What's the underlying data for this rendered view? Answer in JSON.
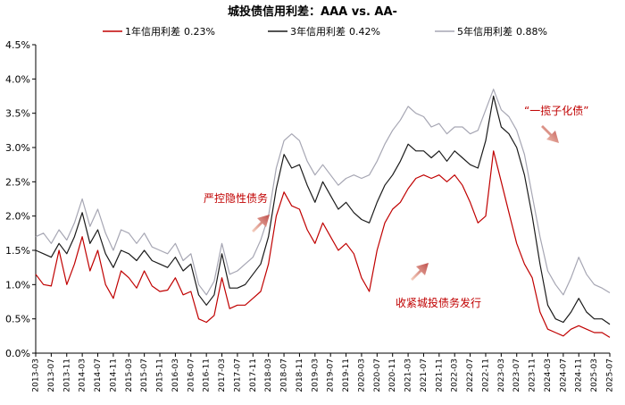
{
  "chart_data": {
    "type": "line",
    "title": "城投债信用利差：AAA vs. AA-",
    "ylim": [
      0,
      4.5
    ],
    "y_ticks": [
      "0.0%",
      "0.5%",
      "1.0%",
      "1.5%",
      "2.0%",
      "2.5%",
      "3.0%",
      "3.5%",
      "4.0%",
      "4.5%"
    ],
    "y_tick_values": [
      0,
      0.5,
      1.0,
      1.5,
      2.0,
      2.5,
      3.0,
      3.5,
      4.0,
      4.5
    ],
    "x_ticks": [
      "2013-03",
      "2013-07",
      "2013-11",
      "2014-03",
      "2014-07",
      "2014-11",
      "2015-03",
      "2015-07",
      "2015-11",
      "2016-03",
      "2016-07",
      "2016-11",
      "2017-03",
      "2017-07",
      "2017-11",
      "2018-03",
      "2018-07",
      "2018-11",
      "2019-03",
      "2019-07",
      "2019-11",
      "2020-03",
      "2020-07",
      "2020-11",
      "2021-03",
      "2021-07",
      "2021-11",
      "2022-03",
      "2022-07",
      "2022-11",
      "2023-03",
      "2023-07",
      "2023-11",
      "2024-03",
      "2024-07",
      "2024-11",
      "2025-03",
      "2025-07"
    ],
    "grid": false,
    "legend_position": "top",
    "series": [
      {
        "name": "1年信用利差",
        "legend_value": "0.23%",
        "color": "#c00000",
        "points": [
          [
            "2013-03",
            1.15
          ],
          [
            "2013-05",
            1.0
          ],
          [
            "2013-07",
            0.98
          ],
          [
            "2013-09",
            1.5
          ],
          [
            "2013-11",
            1.0
          ],
          [
            "2014-01",
            1.3
          ],
          [
            "2014-03",
            1.7
          ],
          [
            "2014-05",
            1.2
          ],
          [
            "2014-07",
            1.5
          ],
          [
            "2014-09",
            1.0
          ],
          [
            "2014-11",
            0.8
          ],
          [
            "2015-01",
            1.2
          ],
          [
            "2015-03",
            1.1
          ],
          [
            "2015-05",
            0.95
          ],
          [
            "2015-07",
            1.2
          ],
          [
            "2015-09",
            0.98
          ],
          [
            "2015-11",
            0.9
          ],
          [
            "2016-01",
            0.92
          ],
          [
            "2016-03",
            1.1
          ],
          [
            "2016-05",
            0.85
          ],
          [
            "2016-07",
            0.9
          ],
          [
            "2016-09",
            0.5
          ],
          [
            "2016-11",
            0.45
          ],
          [
            "2017-01",
            0.55
          ],
          [
            "2017-03",
            1.1
          ],
          [
            "2017-05",
            0.65
          ],
          [
            "2017-07",
            0.7
          ],
          [
            "2017-09",
            0.7
          ],
          [
            "2017-11",
            0.8
          ],
          [
            "2018-01",
            0.9
          ],
          [
            "2018-03",
            1.3
          ],
          [
            "2018-05",
            2.0
          ],
          [
            "2018-07",
            2.35
          ],
          [
            "2018-09",
            2.15
          ],
          [
            "2018-11",
            2.1
          ],
          [
            "2019-01",
            1.8
          ],
          [
            "2019-03",
            1.6
          ],
          [
            "2019-05",
            1.9
          ],
          [
            "2019-07",
            1.7
          ],
          [
            "2019-09",
            1.5
          ],
          [
            "2019-11",
            1.6
          ],
          [
            "2020-01",
            1.45
          ],
          [
            "2020-03",
            1.1
          ],
          [
            "2020-05",
            0.9
          ],
          [
            "2020-07",
            1.5
          ],
          [
            "2020-09",
            1.9
          ],
          [
            "2020-11",
            2.1
          ],
          [
            "2021-01",
            2.2
          ],
          [
            "2021-03",
            2.4
          ],
          [
            "2021-05",
            2.55
          ],
          [
            "2021-07",
            2.6
          ],
          [
            "2021-09",
            2.55
          ],
          [
            "2021-11",
            2.6
          ],
          [
            "2022-01",
            2.5
          ],
          [
            "2022-03",
            2.6
          ],
          [
            "2022-05",
            2.45
          ],
          [
            "2022-07",
            2.2
          ],
          [
            "2022-09",
            1.9
          ],
          [
            "2022-11",
            2.0
          ],
          [
            "2023-01",
            2.95
          ],
          [
            "2023-03",
            2.5
          ],
          [
            "2023-05",
            2.05
          ],
          [
            "2023-07",
            1.6
          ],
          [
            "2023-09",
            1.3
          ],
          [
            "2023-11",
            1.1
          ],
          [
            "2024-01",
            0.6
          ],
          [
            "2024-03",
            0.35
          ],
          [
            "2024-05",
            0.3
          ],
          [
            "2024-07",
            0.25
          ],
          [
            "2024-09",
            0.35
          ],
          [
            "2024-11",
            0.4
          ],
          [
            "2025-01",
            0.35
          ],
          [
            "2025-03",
            0.3
          ],
          [
            "2025-05",
            0.3
          ],
          [
            "2025-07",
            0.23
          ]
        ]
      },
      {
        "name": "3年信用利差",
        "legend_value": "0.42%",
        "color": "#1a1a1a",
        "points": [
          [
            "2013-03",
            1.5
          ],
          [
            "2013-05",
            1.45
          ],
          [
            "2013-07",
            1.4
          ],
          [
            "2013-09",
            1.6
          ],
          [
            "2013-11",
            1.45
          ],
          [
            "2014-01",
            1.7
          ],
          [
            "2014-03",
            2.05
          ],
          [
            "2014-05",
            1.6
          ],
          [
            "2014-07",
            1.8
          ],
          [
            "2014-09",
            1.45
          ],
          [
            "2014-11",
            1.25
          ],
          [
            "2015-01",
            1.5
          ],
          [
            "2015-03",
            1.45
          ],
          [
            "2015-05",
            1.35
          ],
          [
            "2015-07",
            1.5
          ],
          [
            "2015-09",
            1.35
          ],
          [
            "2015-11",
            1.3
          ],
          [
            "2016-01",
            1.25
          ],
          [
            "2016-03",
            1.4
          ],
          [
            "2016-05",
            1.2
          ],
          [
            "2016-07",
            1.3
          ],
          [
            "2016-09",
            0.85
          ],
          [
            "2016-11",
            0.7
          ],
          [
            "2017-01",
            0.85
          ],
          [
            "2017-03",
            1.45
          ],
          [
            "2017-05",
            0.95
          ],
          [
            "2017-07",
            0.95
          ],
          [
            "2017-09",
            1.0
          ],
          [
            "2017-11",
            1.15
          ],
          [
            "2018-01",
            1.3
          ],
          [
            "2018-03",
            1.7
          ],
          [
            "2018-05",
            2.4
          ],
          [
            "2018-07",
            2.9
          ],
          [
            "2018-09",
            2.7
          ],
          [
            "2018-11",
            2.75
          ],
          [
            "2019-01",
            2.45
          ],
          [
            "2019-03",
            2.2
          ],
          [
            "2019-05",
            2.5
          ],
          [
            "2019-07",
            2.3
          ],
          [
            "2019-09",
            2.1
          ],
          [
            "2019-11",
            2.2
          ],
          [
            "2020-01",
            2.05
          ],
          [
            "2020-03",
            1.95
          ],
          [
            "2020-05",
            1.9
          ],
          [
            "2020-07",
            2.2
          ],
          [
            "2020-09",
            2.45
          ],
          [
            "2020-11",
            2.6
          ],
          [
            "2021-01",
            2.8
          ],
          [
            "2021-03",
            3.05
          ],
          [
            "2021-05",
            2.95
          ],
          [
            "2021-07",
            2.95
          ],
          [
            "2021-09",
            2.85
          ],
          [
            "2021-11",
            2.95
          ],
          [
            "2022-01",
            2.8
          ],
          [
            "2022-03",
            2.95
          ],
          [
            "2022-05",
            2.85
          ],
          [
            "2022-07",
            2.75
          ],
          [
            "2022-09",
            2.7
          ],
          [
            "2022-11",
            3.1
          ],
          [
            "2023-01",
            3.75
          ],
          [
            "2023-03",
            3.3
          ],
          [
            "2023-05",
            3.2
          ],
          [
            "2023-07",
            3.0
          ],
          [
            "2023-09",
            2.6
          ],
          [
            "2023-11",
            2.0
          ],
          [
            "2024-01",
            1.3
          ],
          [
            "2024-03",
            0.7
          ],
          [
            "2024-05",
            0.5
          ],
          [
            "2024-07",
            0.45
          ],
          [
            "2024-09",
            0.6
          ],
          [
            "2024-11",
            0.8
          ],
          [
            "2025-01",
            0.6
          ],
          [
            "2025-03",
            0.5
          ],
          [
            "2025-05",
            0.5
          ],
          [
            "2025-07",
            0.42
          ]
        ]
      },
      {
        "name": "5年信用利差",
        "legend_value": "0.88%",
        "color": "#a6a6b3",
        "points": [
          [
            "2013-03",
            1.7
          ],
          [
            "2013-05",
            1.75
          ],
          [
            "2013-07",
            1.6
          ],
          [
            "2013-09",
            1.8
          ],
          [
            "2013-11",
            1.65
          ],
          [
            "2014-01",
            1.9
          ],
          [
            "2014-03",
            2.25
          ],
          [
            "2014-05",
            1.85
          ],
          [
            "2014-07",
            2.1
          ],
          [
            "2014-09",
            1.75
          ],
          [
            "2014-11",
            1.5
          ],
          [
            "2015-01",
            1.8
          ],
          [
            "2015-03",
            1.75
          ],
          [
            "2015-05",
            1.6
          ],
          [
            "2015-07",
            1.75
          ],
          [
            "2015-09",
            1.55
          ],
          [
            "2015-11",
            1.5
          ],
          [
            "2016-01",
            1.45
          ],
          [
            "2016-03",
            1.6
          ],
          [
            "2016-05",
            1.35
          ],
          [
            "2016-07",
            1.45
          ],
          [
            "2016-09",
            1.0
          ],
          [
            "2016-11",
            0.85
          ],
          [
            "2017-01",
            1.05
          ],
          [
            "2017-03",
            1.6
          ],
          [
            "2017-05",
            1.15
          ],
          [
            "2017-07",
            1.2
          ],
          [
            "2017-09",
            1.3
          ],
          [
            "2017-11",
            1.4
          ],
          [
            "2018-01",
            1.65
          ],
          [
            "2018-03",
            2.0
          ],
          [
            "2018-05",
            2.7
          ],
          [
            "2018-07",
            3.1
          ],
          [
            "2018-09",
            3.2
          ],
          [
            "2018-11",
            3.1
          ],
          [
            "2019-01",
            2.8
          ],
          [
            "2019-03",
            2.6
          ],
          [
            "2019-05",
            2.75
          ],
          [
            "2019-07",
            2.6
          ],
          [
            "2019-09",
            2.45
          ],
          [
            "2019-11",
            2.55
          ],
          [
            "2020-01",
            2.6
          ],
          [
            "2020-03",
            2.55
          ],
          [
            "2020-05",
            2.6
          ],
          [
            "2020-07",
            2.8
          ],
          [
            "2020-09",
            3.05
          ],
          [
            "2020-11",
            3.25
          ],
          [
            "2021-01",
            3.4
          ],
          [
            "2021-03",
            3.6
          ],
          [
            "2021-05",
            3.5
          ],
          [
            "2021-07",
            3.45
          ],
          [
            "2021-09",
            3.3
          ],
          [
            "2021-11",
            3.35
          ],
          [
            "2022-01",
            3.2
          ],
          [
            "2022-03",
            3.3
          ],
          [
            "2022-05",
            3.3
          ],
          [
            "2022-07",
            3.2
          ],
          [
            "2022-09",
            3.25
          ],
          [
            "2022-11",
            3.55
          ],
          [
            "2023-01",
            3.85
          ],
          [
            "2023-03",
            3.55
          ],
          [
            "2023-05",
            3.45
          ],
          [
            "2023-07",
            3.25
          ],
          [
            "2023-09",
            2.9
          ],
          [
            "2023-11",
            2.3
          ],
          [
            "2024-01",
            1.7
          ],
          [
            "2024-03",
            1.2
          ],
          [
            "2024-05",
            1.0
          ],
          [
            "2024-07",
            0.85
          ],
          [
            "2024-09",
            1.1
          ],
          [
            "2024-11",
            1.4
          ],
          [
            "2025-01",
            1.15
          ],
          [
            "2025-03",
            1.0
          ],
          [
            "2025-05",
            0.95
          ],
          [
            "2025-07",
            0.88
          ]
        ]
      }
    ],
    "annotations": [
      {
        "text": "严控隐性债务",
        "color": "#c00000"
      },
      {
        "text": "收紧城投债务发行",
        "color": "#c00000"
      },
      {
        "text": "“一揽子化债”",
        "color": "#c00000"
      }
    ]
  }
}
